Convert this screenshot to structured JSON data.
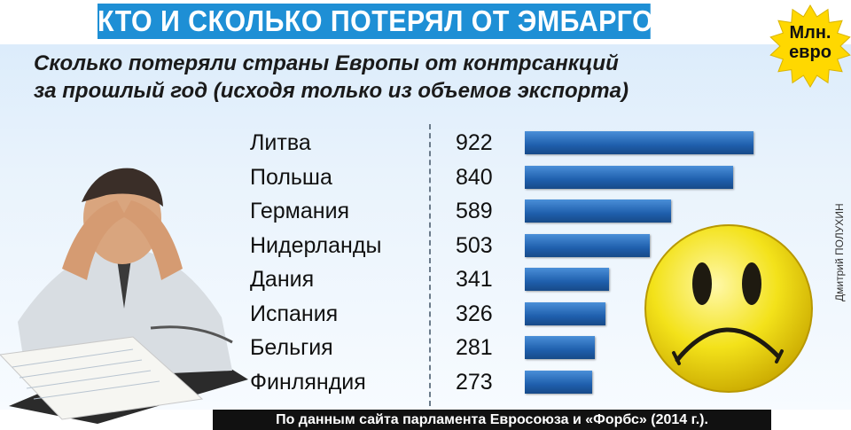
{
  "title": "КТО И СКОЛЬКО ПОТЕРЯЛ ОТ ЭМБАРГО...",
  "subtitle_line1": "Сколько потеряли страны Европы от контрсанкций",
  "subtitle_line2": "за прошлый год (исходя только из объемов экспорта)",
  "badge": {
    "line1": "Млн.",
    "line2": "евро"
  },
  "credit": "Дмитрий ПОЛУХИН",
  "footer": "По данным сайта парламента Евросоюза и «Форбс» (2014 г.).",
  "colors": {
    "title_bar": "#1e8fd5",
    "bar": "#1f5fad",
    "badge": "#ffd800",
    "smiley": "#f3e21a"
  },
  "chart_data": {
    "type": "bar",
    "orientation": "horizontal",
    "categories": [
      "Литва",
      "Польша",
      "Германия",
      "Нидерланды",
      "Дания",
      "Испания",
      "Бельгия",
      "Финляндия"
    ],
    "values": [
      922,
      840,
      589,
      503,
      341,
      326,
      281,
      273
    ],
    "grid": false
  }
}
